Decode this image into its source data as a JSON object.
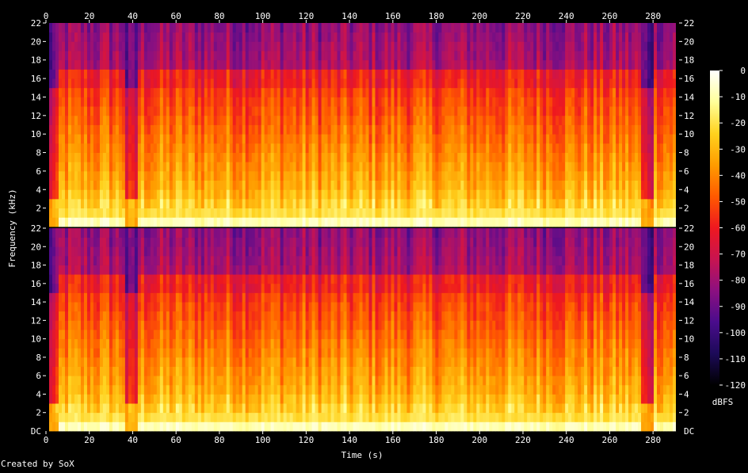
{
  "chart_data": {
    "type": "heatmap",
    "title": "",
    "xlabel": "Time (s)",
    "ylabel": "Frequency (kHz)",
    "xlim": [
      0,
      292
    ],
    "ylim": [
      0,
      22
    ],
    "x_ticks": [
      "0",
      "20",
      "40",
      "60",
      "80",
      "100",
      "120",
      "140",
      "160",
      "180",
      "200",
      "220",
      "240",
      "260",
      "280"
    ],
    "x_tick_values": [
      0,
      20,
      40,
      60,
      80,
      100,
      120,
      140,
      160,
      180,
      200,
      220,
      240,
      260,
      280
    ],
    "y_ticks": [
      "2",
      "4",
      "6",
      "8",
      "10",
      "12",
      "14",
      "16",
      "18",
      "20",
      "22"
    ],
    "y_tick_values": [
      2,
      4,
      6,
      8,
      10,
      12,
      14,
      16,
      18,
      20,
      22
    ],
    "y_bottom_label": "DC",
    "channels": 2,
    "colorbar": {
      "label": "dBFS",
      "ticks": [
        "0",
        "-10",
        "-20",
        "-30",
        "-40",
        "-50",
        "-60",
        "-70",
        "-80",
        "-90",
        "-100",
        "-110",
        "-120"
      ],
      "tick_values": [
        0,
        -10,
        -20,
        -30,
        -40,
        -50,
        -60,
        -70,
        -80,
        -90,
        -100,
        -110,
        -120
      ],
      "range": [
        -120,
        0
      ]
    },
    "lowpass_cutoff_khz": 15,
    "sparse_band_khz": [
      15,
      17
    ],
    "quiet_segments_s": [
      [
        0,
        6
      ],
      [
        37,
        43
      ],
      [
        274,
        281
      ]
    ],
    "audio_span_s": [
      1,
      290
    ],
    "colormap": [
      "#000000",
      "#1c0a58",
      "#4a0c8c",
      "#8c1080",
      "#c81450",
      "#ee1820",
      "#ff5a00",
      "#ff9c00",
      "#ffd21e",
      "#ffff9a",
      "#ffffff"
    ]
  },
  "footer": {
    "credit": "Created by SoX"
  }
}
